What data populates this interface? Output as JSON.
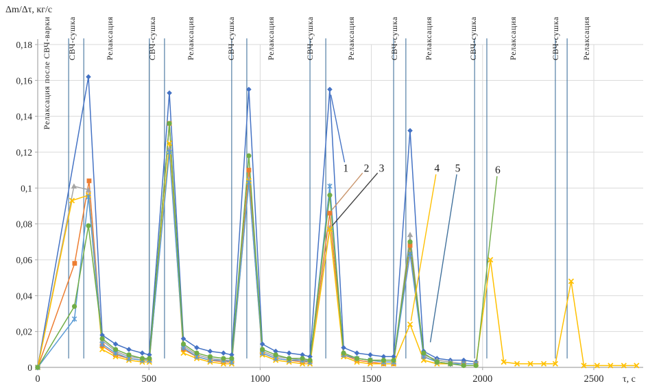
{
  "chart_data": {
    "type": "line",
    "title": "",
    "ylabel": "Δm/Δτ, кг/с",
    "xlabel": "τ, с",
    "xlim": [
      0,
      2740
    ],
    "ylim": [
      0,
      0.18
    ],
    "grid": true,
    "legend_position": "none",
    "x_ticks": [
      {
        "value": 0,
        "label": "0"
      },
      {
        "value": 500,
        "label": "500"
      },
      {
        "value": 1000,
        "label": "1000"
      },
      {
        "value": 1500,
        "label": "1500"
      },
      {
        "value": 2000,
        "label": "2000"
      },
      {
        "value": 2500,
        "label": "2500"
      }
    ],
    "y_ticks": [
      {
        "value": 0,
        "label": "0"
      },
      {
        "value": 0.02,
        "label": "0,02"
      },
      {
        "value": 0.04,
        "label": "0,04"
      },
      {
        "value": 0.06,
        "label": "0,06"
      },
      {
        "value": 0.08,
        "label": "0,08"
      },
      {
        "value": 0.1,
        "label": "0,1"
      },
      {
        "value": 0.12,
        "label": "0,12"
      },
      {
        "value": 0.14,
        "label": "0,14"
      },
      {
        "value": 0.16,
        "label": "0,16"
      },
      {
        "value": 0.18,
        "label": "0,18"
      }
    ],
    "style": {
      "grid_color": "#d9d9d9",
      "axis_color": "#a6a6a6",
      "phase_line_color": "#41719c",
      "text_color": "#262626"
    },
    "phase_boundaries_tau": [
      139,
      207,
      502,
      570,
      872,
      940,
      1224,
      1295,
      1600,
      1655,
      1964,
      2019,
      2327,
      2380
    ],
    "phases": [
      {
        "label": "Релаксация после СВЧ-варки",
        "tau": 40
      },
      {
        "label": "СВЧ-сушка",
        "tau": 154
      },
      {
        "label": "Релаксация",
        "tau": 324
      },
      {
        "label": "СВЧ-сушка",
        "tau": 515
      },
      {
        "label": "Релаксация",
        "tau": 687
      },
      {
        "label": "СВЧ-сушка",
        "tau": 869
      },
      {
        "label": "Релаксация",
        "tau": 1048
      },
      {
        "label": "СВЧ-сушка",
        "tau": 1224
      },
      {
        "label": "Релаксация",
        "tau": 1409
      },
      {
        "label": "СВЧ-сушка",
        "tau": 1603
      },
      {
        "label": "Релаксация",
        "tau": 1757
      },
      {
        "label": "СВЧ-сушка",
        "tau": 1957
      },
      {
        "label": "Релаксация",
        "tau": 2136
      },
      {
        "label": "СВЧ-сушка",
        "tau": 2327
      },
      {
        "label": "Релаксация",
        "tau": 2466
      }
    ],
    "series": [
      {
        "name": "1",
        "color": "#4472c4",
        "marker": "diamond",
        "points": [
          [
            0,
            0
          ],
          [
            228,
            0.162
          ],
          [
            290,
            0.018
          ],
          [
            350,
            0.013
          ],
          [
            410,
            0.01
          ],
          [
            470,
            0.008
          ],
          [
            502,
            0.007
          ],
          [
            592,
            0.153
          ],
          [
            655,
            0.016
          ],
          [
            715,
            0.011
          ],
          [
            775,
            0.009
          ],
          [
            835,
            0.008
          ],
          [
            872,
            0.007
          ],
          [
            949,
            0.155
          ],
          [
            1010,
            0.013
          ],
          [
            1070,
            0.009
          ],
          [
            1130,
            0.008
          ],
          [
            1190,
            0.007
          ],
          [
            1224,
            0.006
          ],
          [
            1313,
            0.155
          ],
          [
            1375,
            0.011
          ],
          [
            1435,
            0.008
          ],
          [
            1495,
            0.007
          ],
          [
            1555,
            0.006
          ],
          [
            1600,
            0.006
          ],
          [
            1674,
            0.132
          ],
          [
            1735,
            0.009
          ],
          [
            1795,
            0.005
          ],
          [
            1855,
            0.004
          ],
          [
            1915,
            0.004
          ],
          [
            1970,
            0.003
          ]
        ]
      },
      {
        "name": "2",
        "color": "#ed7d31",
        "marker": "square",
        "points": [
          [
            0,
            0
          ],
          [
            166,
            0.058
          ],
          [
            231,
            0.104
          ],
          [
            290,
            0.012
          ],
          [
            350,
            0.007
          ],
          [
            410,
            0.005
          ],
          [
            470,
            0.004
          ],
          [
            502,
            0.004
          ],
          [
            592,
            0.136
          ],
          [
            655,
            0.01
          ],
          [
            715,
            0.006
          ],
          [
            775,
            0.004
          ],
          [
            835,
            0.003
          ],
          [
            872,
            0.003
          ],
          [
            949,
            0.11
          ],
          [
            1010,
            0.008
          ],
          [
            1070,
            0.005
          ],
          [
            1130,
            0.004
          ],
          [
            1190,
            0.003
          ],
          [
            1224,
            0.003
          ],
          [
            1313,
            0.086
          ],
          [
            1375,
            0.007
          ],
          [
            1435,
            0.004
          ],
          [
            1495,
            0.003
          ],
          [
            1555,
            0.002
          ],
          [
            1600,
            0.002
          ],
          [
            1674,
            0.068
          ],
          [
            1735,
            0.006
          ],
          [
            1795,
            0.003
          ],
          [
            1855,
            0.002
          ],
          [
            1915,
            0.002
          ],
          [
            1970,
            0.002
          ]
        ]
      },
      {
        "name": "3",
        "color": "#a5a5a5",
        "marker": "triangle",
        "points": [
          [
            0,
            0
          ],
          [
            163,
            0.101
          ],
          [
            228,
            0.099
          ],
          [
            290,
            0.015
          ],
          [
            350,
            0.009
          ],
          [
            410,
            0.006
          ],
          [
            470,
            0.005
          ],
          [
            502,
            0.004
          ],
          [
            592,
            0.122
          ],
          [
            655,
            0.012
          ],
          [
            715,
            0.007
          ],
          [
            775,
            0.005
          ],
          [
            835,
            0.004
          ],
          [
            872,
            0.004
          ],
          [
            949,
            0.105
          ],
          [
            1010,
            0.009
          ],
          [
            1070,
            0.006
          ],
          [
            1130,
            0.005
          ],
          [
            1190,
            0.004
          ],
          [
            1224,
            0.004
          ],
          [
            1313,
            0.078
          ],
          [
            1375,
            0.008
          ],
          [
            1435,
            0.005
          ],
          [
            1495,
            0.004
          ],
          [
            1555,
            0.003
          ],
          [
            1600,
            0.003
          ],
          [
            1674,
            0.074
          ],
          [
            1735,
            0.007
          ],
          [
            1795,
            0.004
          ],
          [
            1855,
            0.003
          ],
          [
            1915,
            0.002
          ],
          [
            1970,
            0.002
          ]
        ]
      },
      {
        "name": "4",
        "color": "#ffc000",
        "marker": "x",
        "points": [
          [
            0,
            0
          ],
          [
            154,
            0.093
          ],
          [
            228,
            0.096
          ],
          [
            290,
            0.01
          ],
          [
            350,
            0.006
          ],
          [
            410,
            0.004
          ],
          [
            470,
            0.003
          ],
          [
            502,
            0.003
          ],
          [
            592,
            0.125
          ],
          [
            655,
            0.008
          ],
          [
            715,
            0.005
          ],
          [
            775,
            0.003
          ],
          [
            835,
            0.002
          ],
          [
            872,
            0.002
          ],
          [
            949,
            0.104
          ],
          [
            1010,
            0.007
          ],
          [
            1070,
            0.004
          ],
          [
            1130,
            0.003
          ],
          [
            1190,
            0.002
          ],
          [
            1224,
            0.002
          ],
          [
            1313,
            0.077
          ],
          [
            1375,
            0.006
          ],
          [
            1435,
            0.003
          ],
          [
            1495,
            0.002
          ],
          [
            1555,
            0.002
          ],
          [
            1600,
            0.002
          ],
          [
            1674,
            0.024
          ],
          [
            1735,
            0.004
          ],
          [
            1795,
            0.002
          ],
          [
            1855,
            0.002
          ],
          [
            1915,
            0.002
          ],
          [
            1970,
            0.002
          ],
          [
            2035,
            0.06
          ],
          [
            2095,
            0.003
          ],
          [
            2155,
            0.002
          ],
          [
            2215,
            0.002
          ],
          [
            2275,
            0.002
          ],
          [
            2327,
            0.002
          ],
          [
            2398,
            0.048
          ],
          [
            2455,
            0.001
          ],
          [
            2515,
            0.001
          ],
          [
            2575,
            0.001
          ],
          [
            2635,
            0.001
          ],
          [
            2692,
            0.001
          ]
        ]
      },
      {
        "name": "5",
        "color": "#5b9bd5",
        "marker": "asterisk",
        "points": [
          [
            0,
            0
          ],
          [
            165,
            0.027
          ],
          [
            228,
            0.095
          ],
          [
            290,
            0.013
          ],
          [
            350,
            0.008
          ],
          [
            410,
            0.005
          ],
          [
            470,
            0.004
          ],
          [
            502,
            0.004
          ],
          [
            592,
            0.12
          ],
          [
            655,
            0.011
          ],
          [
            715,
            0.006
          ],
          [
            775,
            0.004
          ],
          [
            835,
            0.004
          ],
          [
            872,
            0.003
          ],
          [
            949,
            0.103
          ],
          [
            1010,
            0.008
          ],
          [
            1070,
            0.005
          ],
          [
            1130,
            0.004
          ],
          [
            1190,
            0.004
          ],
          [
            1224,
            0.003
          ],
          [
            1313,
            0.101
          ],
          [
            1375,
            0.007
          ],
          [
            1435,
            0.005
          ],
          [
            1495,
            0.004
          ],
          [
            1555,
            0.003
          ],
          [
            1600,
            0.003
          ],
          [
            1674,
            0.063
          ],
          [
            1735,
            0.006
          ],
          [
            1795,
            0.003
          ],
          [
            1855,
            0.002
          ],
          [
            1915,
            0.002
          ],
          [
            1970,
            0.002
          ]
        ]
      },
      {
        "name": "6",
        "color": "#70ad47",
        "marker": "circle",
        "points": [
          [
            0,
            0
          ],
          [
            165,
            0.034
          ],
          [
            228,
            0.079
          ],
          [
            290,
            0.016
          ],
          [
            350,
            0.01
          ],
          [
            410,
            0.007
          ],
          [
            470,
            0.005
          ],
          [
            502,
            0.005
          ],
          [
            592,
            0.136
          ],
          [
            655,
            0.013
          ],
          [
            715,
            0.008
          ],
          [
            775,
            0.006
          ],
          [
            835,
            0.005
          ],
          [
            872,
            0.005
          ],
          [
            949,
            0.118
          ],
          [
            1010,
            0.01
          ],
          [
            1070,
            0.007
          ],
          [
            1130,
            0.005
          ],
          [
            1190,
            0.005
          ],
          [
            1224,
            0.004
          ],
          [
            1313,
            0.096
          ],
          [
            1375,
            0.008
          ],
          [
            1435,
            0.005
          ],
          [
            1495,
            0.004
          ],
          [
            1555,
            0.004
          ],
          [
            1600,
            0.004
          ],
          [
            1674,
            0.07
          ],
          [
            1735,
            0.008
          ],
          [
            1795,
            0.003
          ],
          [
            1855,
            0.002
          ],
          [
            1915,
            0.001
          ],
          [
            1970,
            0.001
          ]
        ]
      }
    ],
    "callouts": [
      {
        "label": "1",
        "tau": 1385,
        "value": 0.111,
        "target_tau": 1318,
        "target_value": 0.152,
        "color": "#4472c4"
      },
      {
        "label": "2",
        "tau": 1478,
        "value": 0.111,
        "target_tau": 1324,
        "target_value": 0.088,
        "color": "#c9956c"
      },
      {
        "label": "3",
        "tau": 1546,
        "value": 0.111,
        "target_tau": 1324,
        "target_value": 0.079,
        "color": "#404040"
      },
      {
        "label": "4",
        "tau": 1795,
        "value": 0.111,
        "target_tau": 1678,
        "target_value": 0.026,
        "color": "#ffc000"
      },
      {
        "label": "5",
        "tau": 1888,
        "value": 0.111,
        "target_tau": 1765,
        "target_value": 0.014,
        "color": "#41719c"
      },
      {
        "label": "6",
        "tau": 2068,
        "value": 0.11,
        "target_tau": 1974,
        "target_value": 0.004,
        "color": "#70ad47"
      }
    ]
  }
}
